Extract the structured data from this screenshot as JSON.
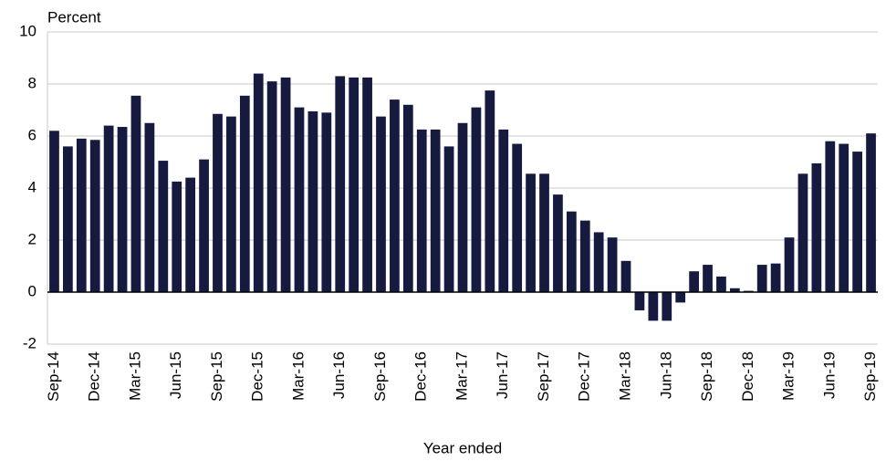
{
  "chart_data": {
    "type": "bar",
    "ylabel": "Percent",
    "xlabel": "Year ended",
    "categories": [
      "Sep-14",
      null,
      null,
      "Dec-14",
      null,
      null,
      "Mar-15",
      null,
      null,
      "Jun-15",
      null,
      null,
      "Sep-15",
      null,
      null,
      "Dec-15",
      null,
      null,
      "Mar-16",
      null,
      null,
      "Jun-16",
      null,
      null,
      "Sep-16",
      null,
      null,
      "Dec-16",
      null,
      null,
      "Mar-17",
      null,
      null,
      "Jun-17",
      null,
      null,
      "Sep-17",
      null,
      null,
      "Dec-17",
      null,
      null,
      "Mar-18",
      null,
      null,
      "Jun-18",
      null,
      null,
      "Sep-18",
      null,
      null,
      "Dec-18",
      null,
      null,
      "Mar-19",
      null,
      null,
      "Jun-19",
      null,
      null,
      "Sep-19"
    ],
    "values": [
      6.2,
      5.6,
      5.9,
      5.85,
      6.4,
      6.35,
      7.55,
      6.5,
      5.05,
      4.25,
      4.4,
      5.1,
      6.85,
      6.75,
      7.55,
      8.4,
      8.1,
      8.25,
      7.1,
      6.95,
      6.9,
      8.3,
      8.25,
      8.25,
      6.75,
      7.4,
      7.2,
      6.25,
      6.25,
      5.6,
      6.5,
      7.1,
      7.75,
      6.25,
      5.7,
      4.55,
      4.55,
      3.75,
      3.1,
      2.75,
      2.3,
      2.1,
      1.2,
      -0.7,
      -1.1,
      -1.1,
      -0.4,
      0.8,
      1.05,
      0.6,
      0.15,
      0.05,
      1.05,
      1.1,
      2.1,
      4.55,
      4.95,
      5.8,
      5.7,
      5.4,
      6.1
    ],
    "color": "#151a3e",
    "ylim": [
      -2,
      10
    ],
    "yticks": [
      -2,
      0,
      2,
      4,
      6,
      8,
      10
    ],
    "grid": true
  }
}
